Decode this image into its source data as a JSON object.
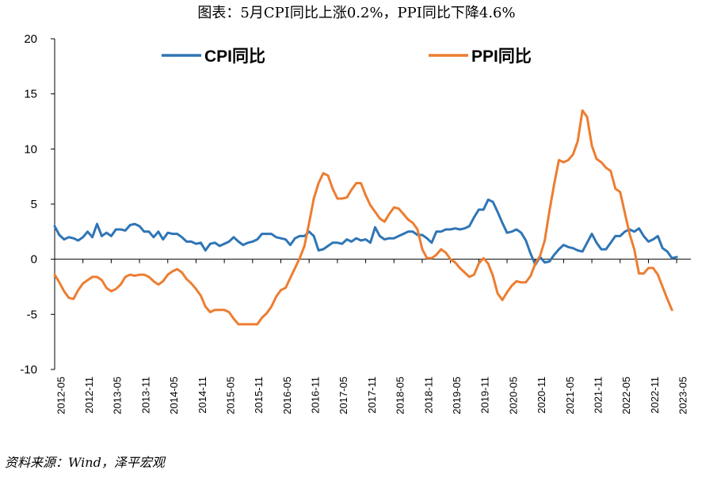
{
  "title": "图表：5月CPI同比上涨0.2%，PPI同比下降4.6%",
  "source": "资料来源：Wind，泽平宏观",
  "chart_data": {
    "type": "line",
    "ylim": [
      -10,
      20
    ],
    "yticks": [
      -10,
      -5,
      0,
      5,
      10,
      15,
      20
    ],
    "xtick_labels": [
      "2012-05",
      "2012-11",
      "2013-05",
      "2013-11",
      "2014-05",
      "2014-11",
      "2015-05",
      "2015-11",
      "2016-05",
      "2016-11",
      "2017-05",
      "2017-11",
      "2018-05",
      "2018-11",
      "2019-05",
      "2019-11",
      "2020-05",
      "2020-11",
      "2021-05",
      "2021-11",
      "2022-05",
      "2022-11",
      "2023-05"
    ],
    "x_start": "2012-05",
    "legend_position": "top",
    "series": [
      {
        "name": "CPI同比",
        "color": "#2E75B6",
        "values": [
          3.0,
          2.2,
          1.8,
          2.0,
          1.9,
          1.7,
          2.0,
          2.5,
          2.0,
          3.2,
          2.1,
          2.4,
          2.1,
          2.7,
          2.7,
          2.6,
          3.1,
          3.2,
          3.0,
          2.5,
          2.5,
          2.0,
          2.5,
          1.8,
          2.4,
          2.3,
          2.3,
          2.0,
          1.6,
          1.6,
          1.4,
          1.5,
          0.8,
          1.4,
          1.5,
          1.2,
          1.4,
          1.6,
          2.0,
          1.6,
          1.3,
          1.5,
          1.6,
          1.8,
          2.3,
          2.3,
          2.3,
          2.0,
          1.9,
          1.8,
          1.3,
          1.9,
          2.1,
          2.1,
          2.5,
          2.1,
          0.8,
          0.9,
          1.2,
          1.5,
          1.5,
          1.4,
          1.8,
          1.6,
          1.9,
          1.7,
          1.8,
          1.5,
          2.9,
          2.1,
          1.8,
          1.9,
          1.9,
          2.1,
          2.3,
          2.5,
          2.5,
          2.2,
          2.2,
          1.9,
          1.5,
          2.5,
          2.5,
          2.7,
          2.7,
          2.8,
          2.7,
          2.8,
          3.0,
          3.8,
          4.5,
          4.5,
          5.4,
          5.2,
          4.3,
          3.3,
          2.4,
          2.5,
          2.7,
          2.4,
          1.7,
          0.5,
          -0.5,
          0.2,
          -0.3,
          -0.2,
          0.4,
          0.9,
          1.3,
          1.1,
          1.0,
          0.8,
          0.7,
          1.5,
          2.3,
          1.5,
          0.9,
          0.9,
          1.5,
          2.1,
          2.1,
          2.5,
          2.7,
          2.5,
          2.8,
          2.1,
          1.6,
          1.8,
          2.1,
          1.0,
          0.7,
          0.1,
          0.2
        ]
      },
      {
        "name": "PPI同比",
        "color": "#ED7D31",
        "values": [
          -1.4,
          -2.1,
          -2.9,
          -3.5,
          -3.6,
          -2.8,
          -2.2,
          -1.9,
          -1.6,
          -1.6,
          -1.9,
          -2.6,
          -2.9,
          -2.7,
          -2.3,
          -1.6,
          -1.4,
          -1.5,
          -1.4,
          -1.4,
          -1.6,
          -2.0,
          -2.3,
          -2.0,
          -1.4,
          -1.1,
          -0.9,
          -1.2,
          -1.8,
          -2.2,
          -2.7,
          -3.3,
          -4.3,
          -4.8,
          -4.6,
          -4.6,
          -4.6,
          -4.8,
          -5.4,
          -5.9,
          -5.9,
          -5.9,
          -5.9,
          -5.9,
          -5.3,
          -4.9,
          -4.3,
          -3.4,
          -2.8,
          -2.6,
          -1.7,
          -0.8,
          0.1,
          1.2,
          3.3,
          5.5,
          6.9,
          7.8,
          7.6,
          6.4,
          5.5,
          5.5,
          5.6,
          6.3,
          6.9,
          6.9,
          5.8,
          4.9,
          4.3,
          3.7,
          3.4,
          4.1,
          4.7,
          4.6,
          4.1,
          3.6,
          3.3,
          2.7,
          0.9,
          0.1,
          0.1,
          0.4,
          0.9,
          0.6,
          0.0,
          -0.3,
          -0.8,
          -1.2,
          -1.6,
          -1.4,
          -0.4,
          0.1,
          -0.4,
          -1.5,
          -3.1,
          -3.7,
          -3.0,
          -2.4,
          -2.0,
          -2.1,
          -2.1,
          -1.5,
          -0.4,
          0.3,
          1.7,
          4.4,
          6.8,
          9.0,
          8.8,
          9.0,
          9.5,
          10.7,
          13.5,
          12.9,
          10.3,
          9.1,
          8.8,
          8.3,
          8.0,
          6.4,
          6.1,
          4.2,
          2.3,
          0.9,
          -1.3,
          -1.3,
          -0.8,
          -0.8,
          -1.4,
          -2.5,
          -3.6,
          -4.6
        ]
      }
    ]
  }
}
